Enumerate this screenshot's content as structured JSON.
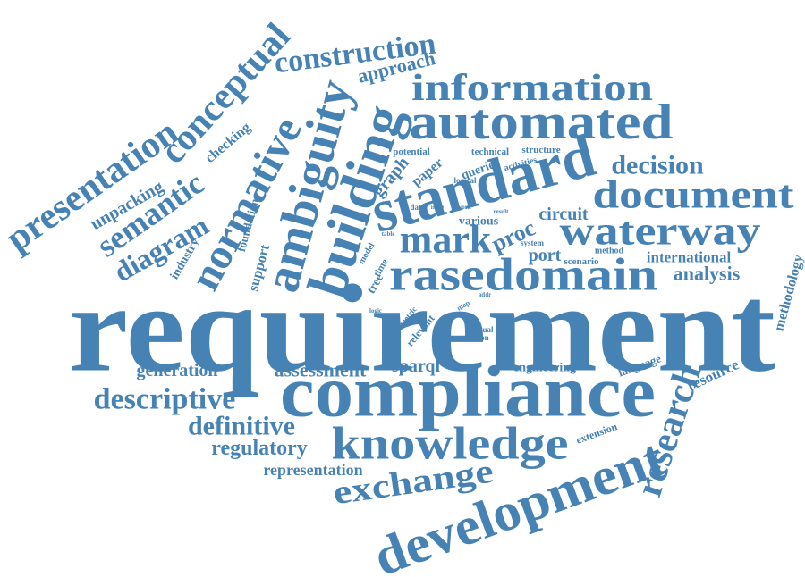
{
  "words": [
    "requirement",
    "compliance",
    "knowledge",
    "development",
    "exchange",
    "research",
    "standard",
    "automated",
    "information",
    "document",
    "waterway",
    "decision",
    "rasedomain",
    "mark",
    "building",
    "ambiguity",
    "normative",
    "conceptual",
    "construction",
    "approach",
    "presentation",
    "semantic",
    "diagram",
    "unpacking",
    "checking",
    "foundation",
    "industry",
    "support",
    "analysis",
    "international",
    "port",
    "proc",
    "circuit",
    "methodology",
    "language",
    "resource",
    "extension",
    "engineering",
    "sparql",
    "assessment",
    "generation",
    "descriptive",
    "definitive",
    "regulatory",
    "representation",
    "manual",
    "reason",
    "graph",
    "paper",
    "queries",
    "potential",
    "technical",
    "structure",
    "activities",
    "logical",
    "various",
    "model",
    "time",
    "tree",
    "scenario",
    "method",
    "system",
    "relevant",
    "metric",
    "map",
    "addr",
    "logic",
    "result",
    "table",
    "issue",
    "work",
    "data"
  ]
}
